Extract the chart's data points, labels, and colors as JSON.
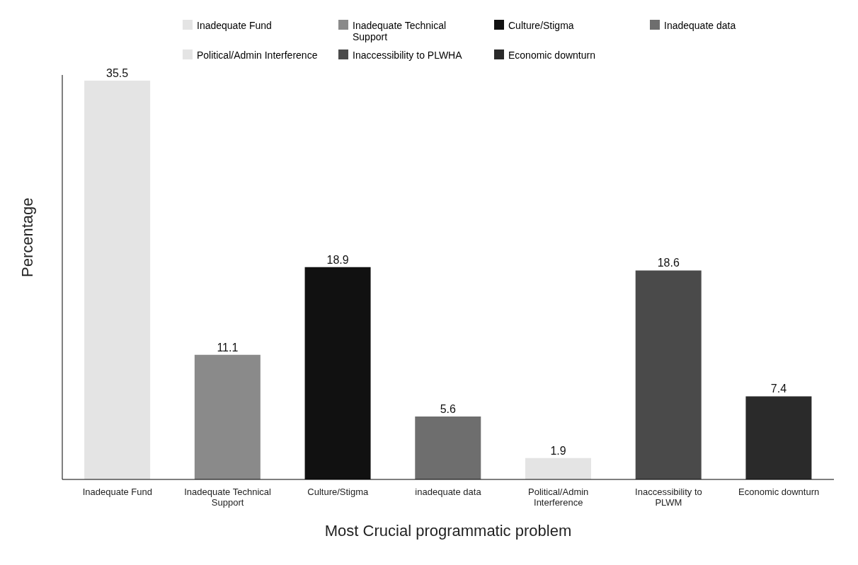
{
  "chart_data": {
    "type": "bar",
    "xlabel": "Most Crucial programmatic problem",
    "ylabel": "Percentage",
    "categories": [
      "Inadequate Fund",
      "Inadequate Technical Support",
      "Culture/Stigma",
      "inadequate data",
      "Political/Admin Interference",
      "Inaccessibility to PLWM",
      "Economic downturn"
    ],
    "stacked": true,
    "data_labels": true,
    "legend": "top",
    "tick_labels": "x",
    "series": [
      {
        "name": "Inadequate Fund",
        "color": "#e4e4e4",
        "values": [
          35.5,
          null,
          null,
          null,
          null,
          null,
          null
        ]
      },
      {
        "name": "Inadequate Technical Support",
        "color": "#8a8a8a",
        "values": [
          null,
          11.1,
          null,
          null,
          null,
          null,
          null
        ]
      },
      {
        "name": "Culture/Stigma",
        "color": "#111111",
        "values": [
          null,
          null,
          18.9,
          null,
          null,
          null,
          null
        ]
      },
      {
        "name": "Inadequate data",
        "color": "#6e6e6e",
        "values": [
          null,
          null,
          null,
          5.6,
          null,
          null,
          null
        ]
      },
      {
        "name": "Political/Admin Interference",
        "color": "#e4e4e4",
        "values": [
          null,
          null,
          null,
          null,
          1.9,
          null,
          null
        ]
      },
      {
        "name": "Inaccessibility to PLWHA",
        "color": "#4a4a4a",
        "values": [
          null,
          null,
          null,
          null,
          null,
          18.6,
          null
        ]
      },
      {
        "name": "Economic downturn",
        "color": "#2a2a2a",
        "values": [
          null,
          null,
          null,
          null,
          null,
          null,
          7.4
        ]
      }
    ]
  }
}
